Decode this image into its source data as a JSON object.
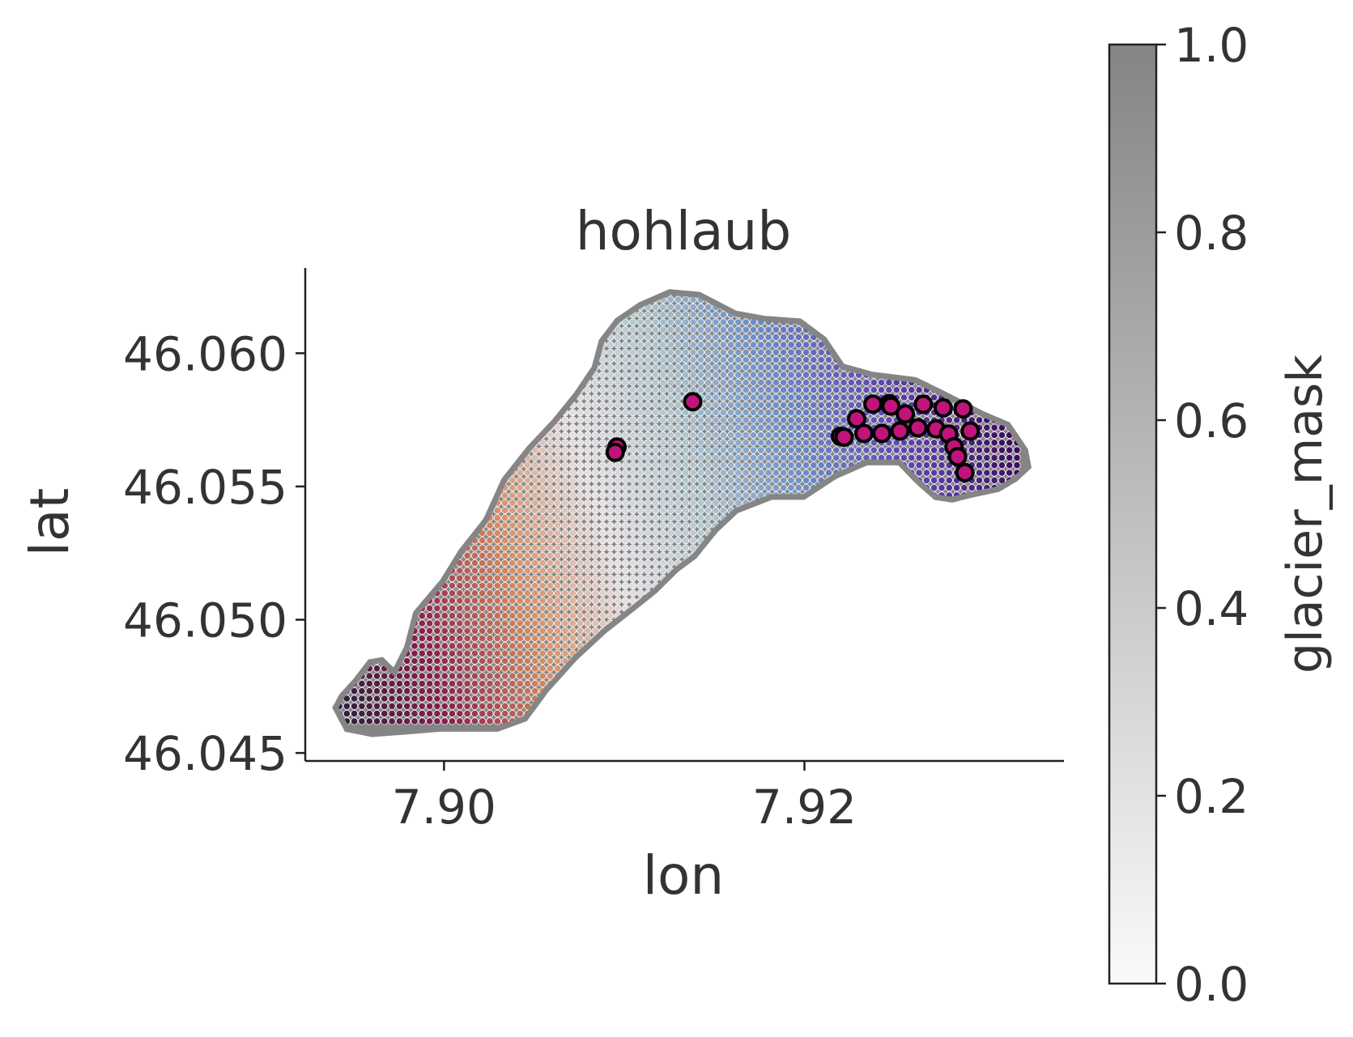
{
  "chart_data": {
    "type": "scatter",
    "title": "hohlaub",
    "xlabel": "lon",
    "ylabel": "lat",
    "xlim": [
      7.8923,
      7.9344
    ],
    "ylim": [
      46.0447,
      46.0632
    ],
    "xticks": [
      {
        "value": 7.9,
        "label": "7.90"
      },
      {
        "value": 7.92,
        "label": "7.92"
      }
    ],
    "yticks": [
      {
        "value": 46.045,
        "label": "46.045"
      },
      {
        "value": 46.05,
        "label": "46.050"
      },
      {
        "value": 46.055,
        "label": "46.055"
      },
      {
        "value": 46.06,
        "label": "46.060"
      }
    ],
    "grid": false,
    "colorbar": {
      "label": "glacier_mask",
      "range": [
        0.0,
        1.0
      ],
      "ticks": [
        {
          "value": 0.0,
          "label": "0.0"
        },
        {
          "value": 0.2,
          "label": "0.2"
        },
        {
          "value": 0.4,
          "label": "0.4"
        },
        {
          "value": 0.6,
          "label": "0.6"
        },
        {
          "value": 0.8,
          "label": "0.8"
        },
        {
          "value": 1.0,
          "label": "1.0"
        }
      ],
      "colors": {
        "low": "#fafafa",
        "high": "#858585"
      }
    },
    "glacier_mask_color": "#858585",
    "grid_points_colormap": [
      "#2d1e3e",
      "#8a1f4c",
      "#d68a5f",
      "#e6dfe3",
      "#adc6d0",
      "#6a8dc8",
      "#5f45b0",
      "#3d0d5c"
    ],
    "stake_marker": {
      "fill": "#c0147a",
      "edge": "#000000"
    },
    "glacier_outline": [
      [
        7.8938,
        46.0467
      ],
      [
        7.8942,
        46.0472
      ],
      [
        7.895,
        46.0478
      ],
      [
        7.8958,
        46.0485
      ],
      [
        7.8966,
        46.0486
      ],
      [
        7.8972,
        46.0482
      ],
      [
        7.8978,
        46.049
      ],
      [
        7.8983,
        46.0503
      ],
      [
        7.8998,
        46.0515
      ],
      [
        7.9008,
        46.0526
      ],
      [
        7.9022,
        46.0538
      ],
      [
        7.9032,
        46.0553
      ],
      [
        7.9046,
        46.0565
      ],
      [
        7.906,
        46.0575
      ],
      [
        7.9072,
        46.0585
      ],
      [
        7.9082,
        46.0595
      ],
      [
        7.9086,
        46.0605
      ],
      [
        7.9095,
        46.0613
      ],
      [
        7.9108,
        46.0619
      ],
      [
        7.9125,
        46.0624
      ],
      [
        7.9142,
        46.0623
      ],
      [
        7.9162,
        46.0616
      ],
      [
        7.9178,
        46.0614
      ],
      [
        7.9198,
        46.0613
      ],
      [
        7.9212,
        46.0606
      ],
      [
        7.9222,
        46.0596
      ],
      [
        7.9238,
        46.0593
      ],
      [
        7.9262,
        46.0591
      ],
      [
        7.928,
        46.0585
      ],
      [
        7.93,
        46.0578
      ],
      [
        7.9314,
        46.0574
      ],
      [
        7.9324,
        46.0564
      ],
      [
        7.9326,
        46.0557
      ],
      [
        7.9318,
        46.0552
      ],
      [
        7.9308,
        46.0548
      ],
      [
        7.9294,
        46.0546
      ],
      [
        7.9282,
        46.0544
      ],
      [
        7.9272,
        46.0545
      ],
      [
        7.9262,
        46.0551
      ],
      [
        7.9252,
        46.0558
      ],
      [
        7.9235,
        46.0558
      ],
      [
        7.9218,
        46.0553
      ],
      [
        7.92,
        46.0545
      ],
      [
        7.9182,
        46.0545
      ],
      [
        7.9163,
        46.054
      ],
      [
        7.9152,
        46.0533
      ],
      [
        7.914,
        46.0523
      ],
      [
        7.913,
        46.0518
      ],
      [
        7.9118,
        46.051
      ],
      [
        7.9105,
        46.0503
      ],
      [
        7.909,
        46.0495
      ],
      [
        7.9074,
        46.0485
      ],
      [
        7.9058,
        46.0473
      ],
      [
        7.9046,
        46.0462
      ],
      [
        7.903,
        46.0458
      ],
      [
        7.9014,
        46.0458
      ],
      [
        7.8998,
        46.0458
      ],
      [
        7.898,
        46.0457
      ],
      [
        7.896,
        46.0456
      ],
      [
        7.8945,
        46.0458
      ]
    ],
    "grid_extent": {
      "x": [
        7.8935,
        7.9324
      ],
      "y": [
        46.0458,
        46.0626
      ]
    },
    "series": [
      {
        "name": "",
        "marker": "circle",
        "points": [
          [
            7.9096,
            46.05648
          ],
          [
            7.9095,
            46.05628
          ],
          [
            7.9138,
            46.05818
          ],
          [
            7.922,
            46.05688
          ],
          [
            7.9222,
            46.05685
          ],
          [
            7.9229,
            46.05754
          ],
          [
            7.9233,
            46.05699
          ],
          [
            7.9238,
            46.05809
          ],
          [
            7.9243,
            46.05699
          ],
          [
            7.9247,
            46.05811
          ],
          [
            7.9248,
            46.05801
          ],
          [
            7.9253,
            46.05708
          ],
          [
            7.9256,
            46.05772
          ],
          [
            7.9263,
            46.0572
          ],
          [
            7.9266,
            46.05808
          ],
          [
            7.9273,
            46.05716
          ],
          [
            7.9277,
            46.05795
          ],
          [
            7.928,
            46.05697
          ],
          [
            7.9283,
            46.05649
          ],
          [
            7.9285,
            46.05612
          ],
          [
            7.9288,
            46.05791
          ],
          [
            7.9289,
            46.05552
          ],
          [
            7.9292,
            46.05708
          ]
        ]
      }
    ]
  }
}
